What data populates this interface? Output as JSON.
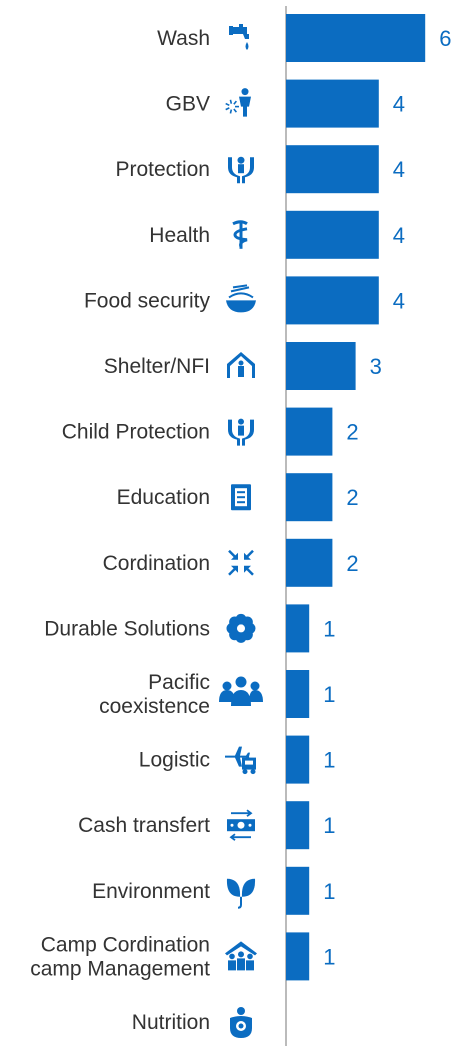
{
  "chart_data": {
    "type": "bar",
    "orientation": "horizontal",
    "categories": [
      "Wash",
      "GBV",
      "Protection",
      "Health",
      "Food security",
      "Shelter/NFI",
      "Child Protection",
      "Education",
      "Cordination",
      "Durable Solutions",
      "Pacific coexistence",
      "Logistic",
      "Cash transfert",
      "Environment",
      "Camp Cordination camp Management",
      "Nutrition"
    ],
    "label_lines": [
      [
        "Wash"
      ],
      [
        "GBV"
      ],
      [
        "Protection"
      ],
      [
        "Health"
      ],
      [
        "Food security"
      ],
      [
        "Shelter/NFI"
      ],
      [
        "Child Protection"
      ],
      [
        "Education"
      ],
      [
        "Cordination"
      ],
      [
        "Durable Solutions"
      ],
      [
        "Pacific",
        "coexistence"
      ],
      [
        "Logistic"
      ],
      [
        "Cash transfert"
      ],
      [
        "Environment"
      ],
      [
        "Camp Cordination",
        "camp Management"
      ],
      [
        "Nutrition"
      ]
    ],
    "values": [
      6,
      4,
      4,
      4,
      4,
      3,
      2,
      2,
      2,
      1,
      1,
      1,
      1,
      1,
      1,
      null
    ],
    "value_labels": [
      "6",
      "4",
      "4",
      "4",
      "4",
      "3",
      "2",
      "2",
      "2",
      "1",
      "1",
      "1",
      "1",
      "1",
      "1",
      ""
    ],
    "icons": [
      "water-tap-icon",
      "gbv-icon",
      "protection-hands-icon",
      "health-icon",
      "food-bowl-icon",
      "shelter-icon",
      "child-protection-icon",
      "education-book-icon",
      "coordination-arrows-icon",
      "durable-solutions-icon",
      "people-group-icon",
      "logistics-plane-truck-icon",
      "cash-transfer-icon",
      "environment-leaf-icon",
      "camp-management-icon",
      "nutrition-icon"
    ],
    "xlim": [
      0,
      6
    ],
    "grid": false,
    "colors": {
      "bar": "#0b6cc1",
      "value_text": "#0b6cc1",
      "icon": "#0b6cc1",
      "label": "#333333",
      "axis": "#777777"
    }
  }
}
